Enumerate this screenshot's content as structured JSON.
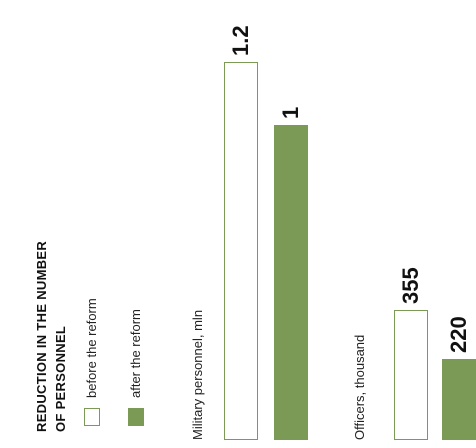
{
  "chart_data": {
    "type": "bar",
    "title": "REDUCTION IN THE NUMBER OF PERSONNEL",
    "legend": {
      "placement": "left",
      "entries": [
        {
          "name": "before the reform",
          "color": "#ffffff",
          "border": "#7a9a56"
        },
        {
          "name": "after the reform",
          "color": "#7a9a56",
          "border": "#7a9a56"
        }
      ]
    },
    "groups": [
      {
        "label": "Military personnel, mln",
        "values": [
          1.2,
          1
        ],
        "value_labels": [
          "1.2",
          "1"
        ]
      },
      {
        "label": "Officers, thousand",
        "values": [
          355,
          220
        ],
        "value_labels": [
          "355",
          "220"
        ]
      }
    ],
    "colors": {
      "accent": "#7a9a56",
      "outline": "#7a9a56",
      "text": "#111111"
    }
  }
}
